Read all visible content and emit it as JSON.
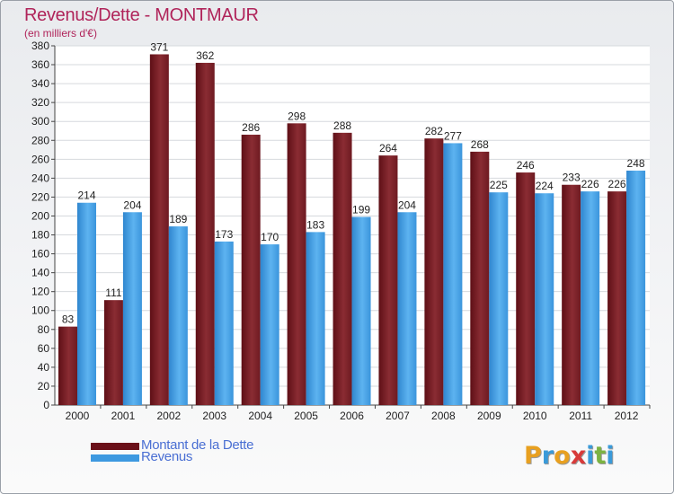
{
  "header": {
    "title": "Revenus/Dette - MONTMAUR",
    "subtitle": "(en milliers d'€)"
  },
  "chart_data": {
    "type": "bar",
    "categories": [
      "2000",
      "2001",
      "2002",
      "2003",
      "2004",
      "2005",
      "2006",
      "2007",
      "2008",
      "2009",
      "2010",
      "2011",
      "2012"
    ],
    "series": [
      {
        "name": "Montant de la Dette",
        "color": "#7a1a22",
        "values": [
          83,
          111,
          371,
          362,
          286,
          298,
          288,
          264,
          282,
          268,
          246,
          233,
          226
        ]
      },
      {
        "name": "Revenus",
        "color": "#3d99e0",
        "values": [
          214,
          204,
          189,
          173,
          170,
          183,
          199,
          204,
          277,
          225,
          224,
          226,
          248
        ]
      }
    ],
    "ylim": [
      0,
      380
    ],
    "ytick_step": 20,
    "grid": true,
    "legend_position": "bottom-left"
  },
  "logo": {
    "letters": [
      {
        "ch": "P",
        "color": "#e8a020"
      },
      {
        "ch": "r",
        "color": "#3a9ad9"
      },
      {
        "ch": "o",
        "color": "#e8a020"
      },
      {
        "ch": "x",
        "color": "#d83a3a"
      },
      {
        "ch": "i",
        "color": "#3a9ad9"
      },
      {
        "ch": "t",
        "color": "#7cb342"
      },
      {
        "ch": "i",
        "color": "#3a9ad9"
      }
    ]
  }
}
